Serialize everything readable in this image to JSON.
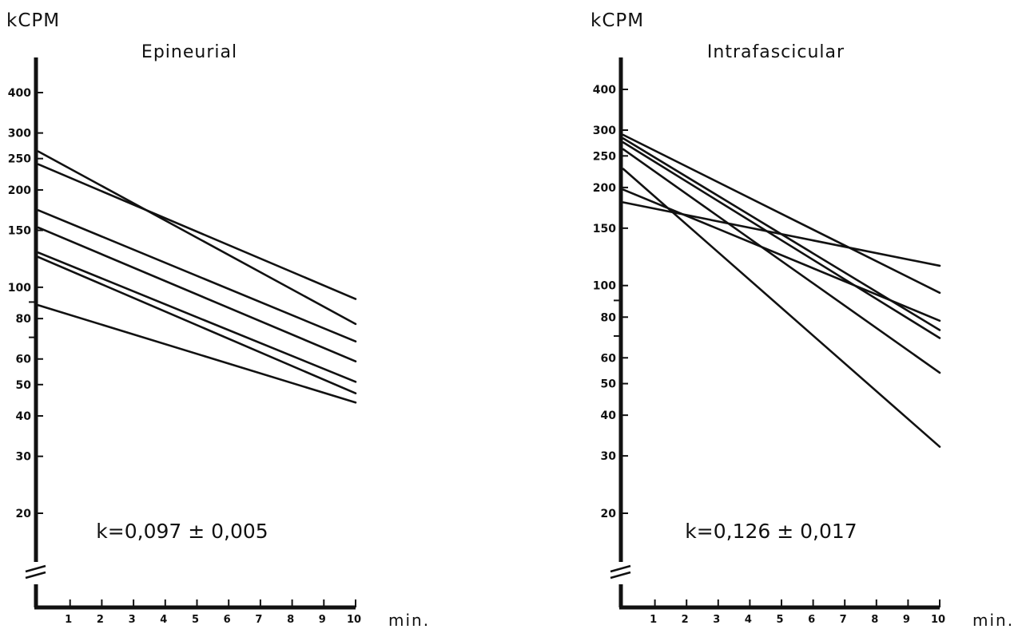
{
  "chart_data": [
    {
      "type": "line",
      "title": "Epineurial",
      "ylabel": "kCPM",
      "xlabel": "min.",
      "y_scale": "log",
      "yticks": [
        20,
        30,
        40,
        50,
        60,
        80,
        100,
        150,
        200,
        250,
        300,
        400
      ],
      "xticks": [
        1,
        2,
        3,
        4,
        5,
        6,
        7,
        8,
        9,
        10
      ],
      "xlim": [
        0,
        10
      ],
      "axis_break": true,
      "grid": false,
      "annotation": "k=0,097 ± 0,005",
      "series": [
        {
          "x": [
            0,
            10
          ],
          "y": [
            263,
            77
          ]
        },
        {
          "x": [
            0,
            10
          ],
          "y": [
            240,
            92
          ]
        },
        {
          "x": [
            0,
            10
          ],
          "y": [
            173,
            68
          ]
        },
        {
          "x": [
            0,
            10
          ],
          "y": [
            153,
            59
          ]
        },
        {
          "x": [
            0,
            10
          ],
          "y": [
            128,
            51
          ]
        },
        {
          "x": [
            0,
            10
          ],
          "y": [
            124,
            47
          ]
        },
        {
          "x": [
            0,
            10
          ],
          "y": [
            88,
            44
          ]
        }
      ]
    },
    {
      "type": "line",
      "title": "Intrafascicular",
      "ylabel": "kCPM",
      "xlabel": "min.",
      "y_scale": "log",
      "yticks": [
        20,
        30,
        40,
        50,
        60,
        80,
        100,
        150,
        200,
        250,
        300,
        400
      ],
      "xticks": [
        1,
        2,
        3,
        4,
        5,
        6,
        7,
        8,
        9,
        10
      ],
      "xlim": [
        0,
        10
      ],
      "axis_break": true,
      "grid": false,
      "annotation": "k=0,126 ± 0,017",
      "series": [
        {
          "x": [
            0,
            10
          ],
          "y": [
            290,
            95
          ]
        },
        {
          "x": [
            0,
            10
          ],
          "y": [
            283,
            73
          ]
        },
        {
          "x": [
            0,
            10
          ],
          "y": [
            275,
            69
          ]
        },
        {
          "x": [
            0,
            10
          ],
          "y": [
            262,
            54
          ]
        },
        {
          "x": [
            0,
            10
          ],
          "y": [
            228,
            32
          ]
        },
        {
          "x": [
            0,
            10
          ],
          "y": [
            197,
            78
          ]
        },
        {
          "x": [
            0,
            10
          ],
          "y": [
            180,
            115
          ]
        }
      ]
    }
  ]
}
